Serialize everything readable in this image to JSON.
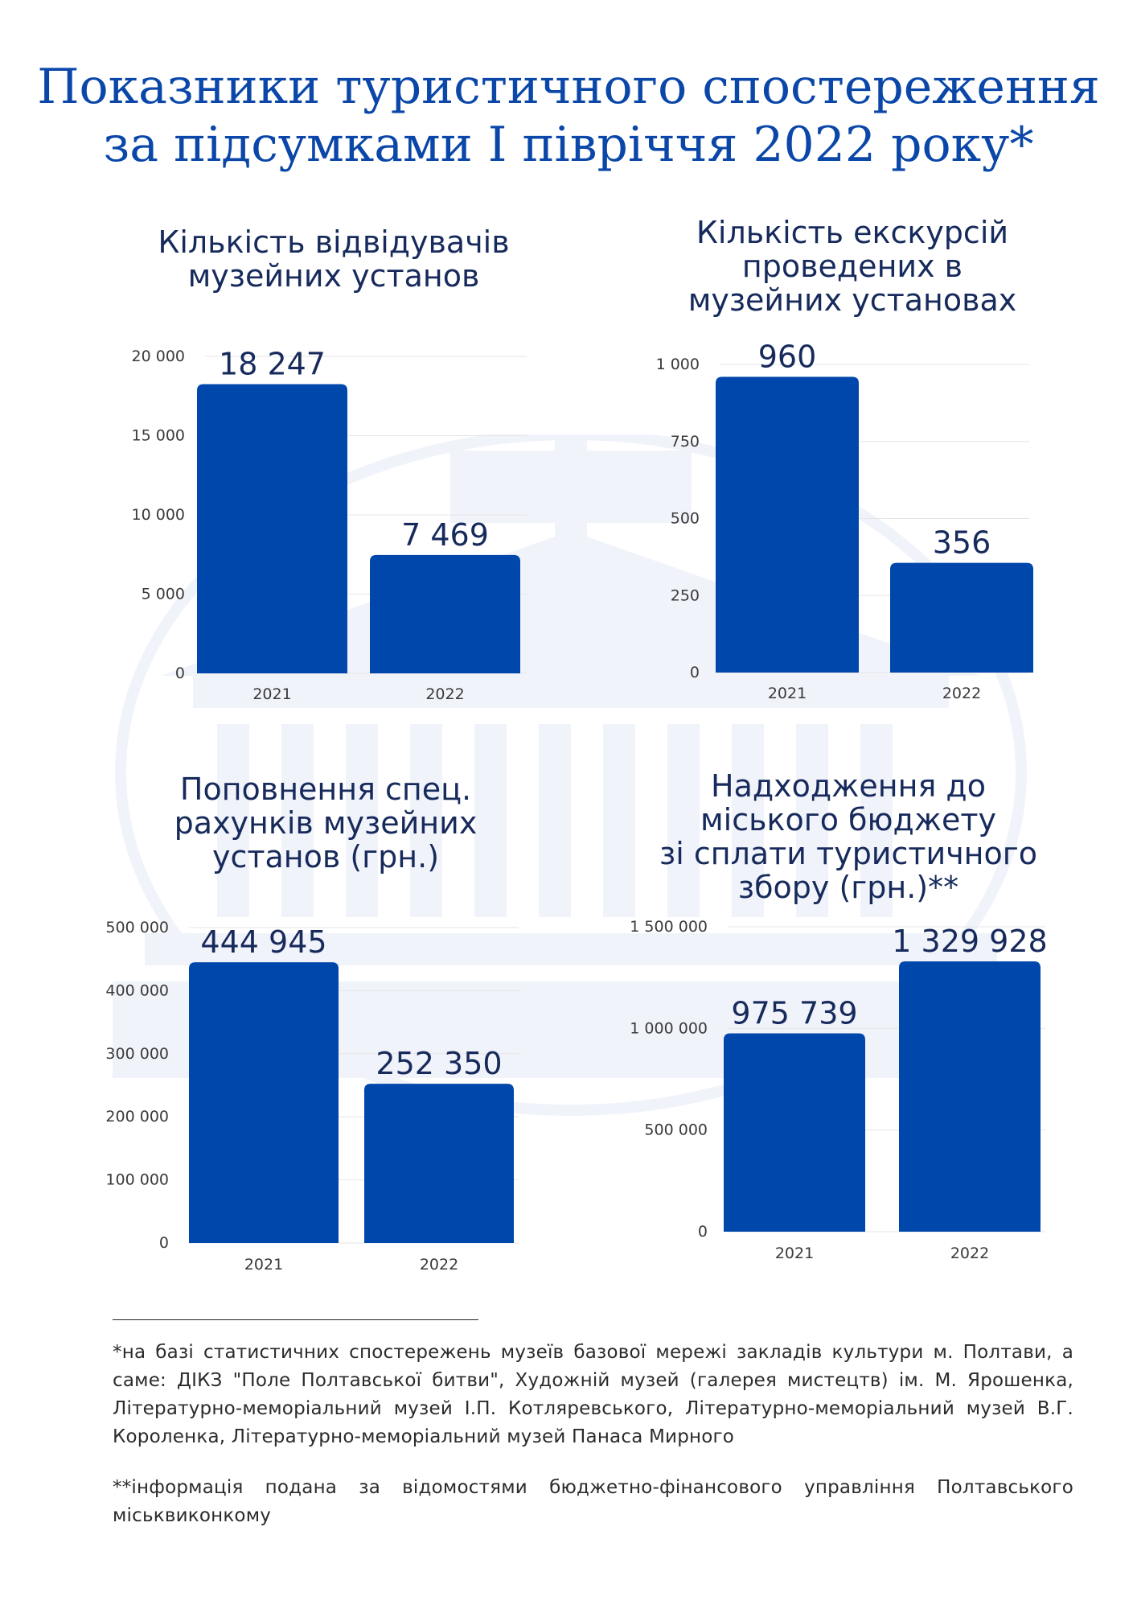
{
  "page": {
    "title_line1": "Показники туристичного спостереження",
    "title_line2": "за підсумками І півріччя 2022 року*",
    "footnote1": "*на базі статистичних спостережень музеїв базової мережі закладів культури м. Полтави, а саме: ДІКЗ \"Поле Полтавської битви\", Художній музей (галерея мистецтв) ім. М. Ярошенка, Літературно-меморіальний музей І.П. Котляревського, Літературно-меморіальний музей В.Г. Короленка, Літературно-меморіальний музей Панаса Мирного",
    "footnote2": "**інформація подана за відомостями бюджетно-фінансового управління Полтавського міськвиконкому"
  },
  "colors": {
    "bar": "#0047ab",
    "title": "#0a47a8",
    "text": "#172a5c",
    "grid": "#e6e6e6"
  },
  "chart_data": [
    {
      "type": "bar",
      "title": "Кількість відвідувачів\nмузейних установ",
      "categories": [
        "2021",
        "2022"
      ],
      "values": [
        18247,
        7469
      ],
      "value_labels": [
        "18 247",
        "7 469"
      ],
      "ylim": [
        0,
        20000
      ],
      "yticks": [
        0,
        5000,
        10000,
        15000,
        20000
      ],
      "ytick_labels": [
        "0",
        "5 000",
        "10 000",
        "15 000",
        "20 000"
      ],
      "grid": true
    },
    {
      "type": "bar",
      "title": "Кількість екскурсій\nпроведених в\nмузейних установах",
      "categories": [
        "2021",
        "2022"
      ],
      "values": [
        960,
        356
      ],
      "value_labels": [
        "960",
        "356"
      ],
      "ylim": [
        0,
        1000
      ],
      "yticks": [
        0,
        250,
        500,
        750,
        1000
      ],
      "ytick_labels": [
        "0",
        "250",
        "500",
        "750",
        "1 000"
      ],
      "grid": true
    },
    {
      "type": "bar",
      "title": "Поповнення спец.\nрахунків музейних\nустанов (грн.)",
      "categories": [
        "2021",
        "2022"
      ],
      "values": [
        444945,
        252350
      ],
      "value_labels": [
        "444 945",
        "252 350"
      ],
      "ylim": [
        0,
        500000
      ],
      "yticks": [
        0,
        100000,
        200000,
        300000,
        400000,
        500000
      ],
      "ytick_labels": [
        "0",
        "100 000",
        "200 000",
        "300 000",
        "400 000",
        "500 000"
      ],
      "grid": true
    },
    {
      "type": "bar",
      "title": "Надходження до\nміського бюджету\nзі сплати туристичного\nзбору (грн.)**",
      "categories": [
        "2021",
        "2022"
      ],
      "values": [
        975739,
        1329928
      ],
      "value_labels": [
        "975 739",
        "1 329 928"
      ],
      "ylim": [
        0,
        1500000
      ],
      "yticks": [
        0,
        500000,
        1000000,
        1500000
      ],
      "ytick_labels": [
        "0",
        "500 000",
        "1 000 000",
        "1 500 000"
      ],
      "grid": true
    }
  ]
}
